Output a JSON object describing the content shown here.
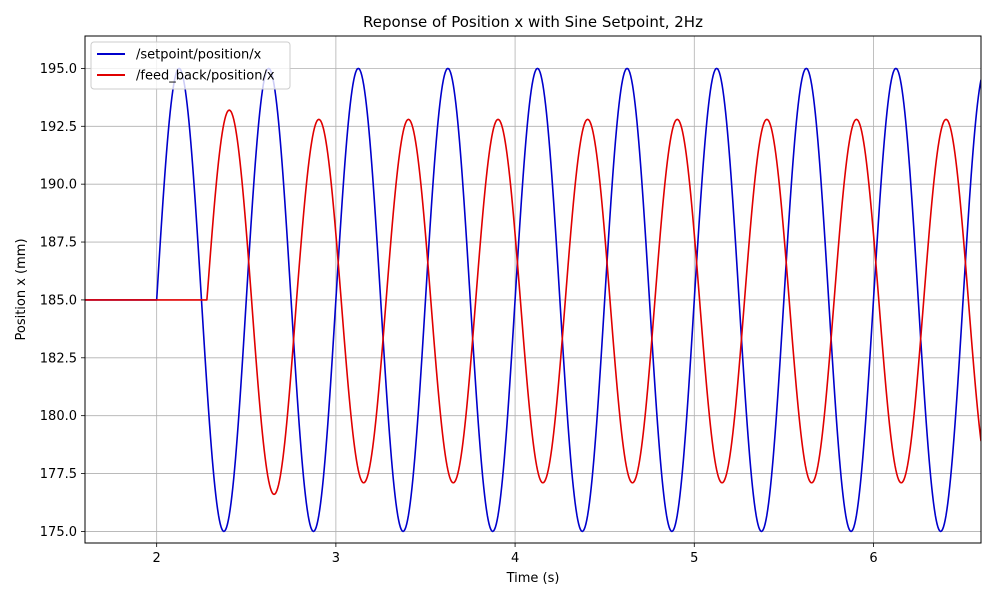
{
  "chart_data": {
    "type": "line",
    "title": "Reponse of Position x with Sine Setpoint, 2Hz",
    "xlabel": "Time (s)",
    "ylabel": "Position x (mm)",
    "xlim": [
      1.6,
      6.6
    ],
    "ylim": [
      174.5,
      196.4
    ],
    "xticks": [
      2,
      3,
      4,
      5,
      6
    ],
    "xtick_labels": [
      "2",
      "3",
      "4",
      "5",
      "6"
    ],
    "yticks": [
      175.0,
      177.5,
      180.0,
      182.5,
      185.0,
      187.5,
      190.0,
      192.5,
      195.0
    ],
    "ytick_labels": [
      "175.0",
      "177.5",
      "180.0",
      "182.5",
      "185.0",
      "187.5",
      "190.0",
      "192.5",
      "195.0"
    ],
    "grid": true,
    "legend_position": "top-left",
    "series": [
      {
        "name": "/setpoint/position/x",
        "color": "#0000cc",
        "model": "sine",
        "hold_value": 185.0,
        "start_time": 2.0,
        "offset": 185.0,
        "amplitude": 10.0,
        "frequency_hz": 2.0
      },
      {
        "name": "/feed_back/position/x",
        "color": "#e00000",
        "model": "sine",
        "hold_value": 185.0,
        "start_time": 2.28,
        "offset": 184.95,
        "amplitude": 7.85,
        "frequency_hz": 2.0,
        "first_peak": 193.2,
        "first_trough": 176.6
      }
    ]
  }
}
